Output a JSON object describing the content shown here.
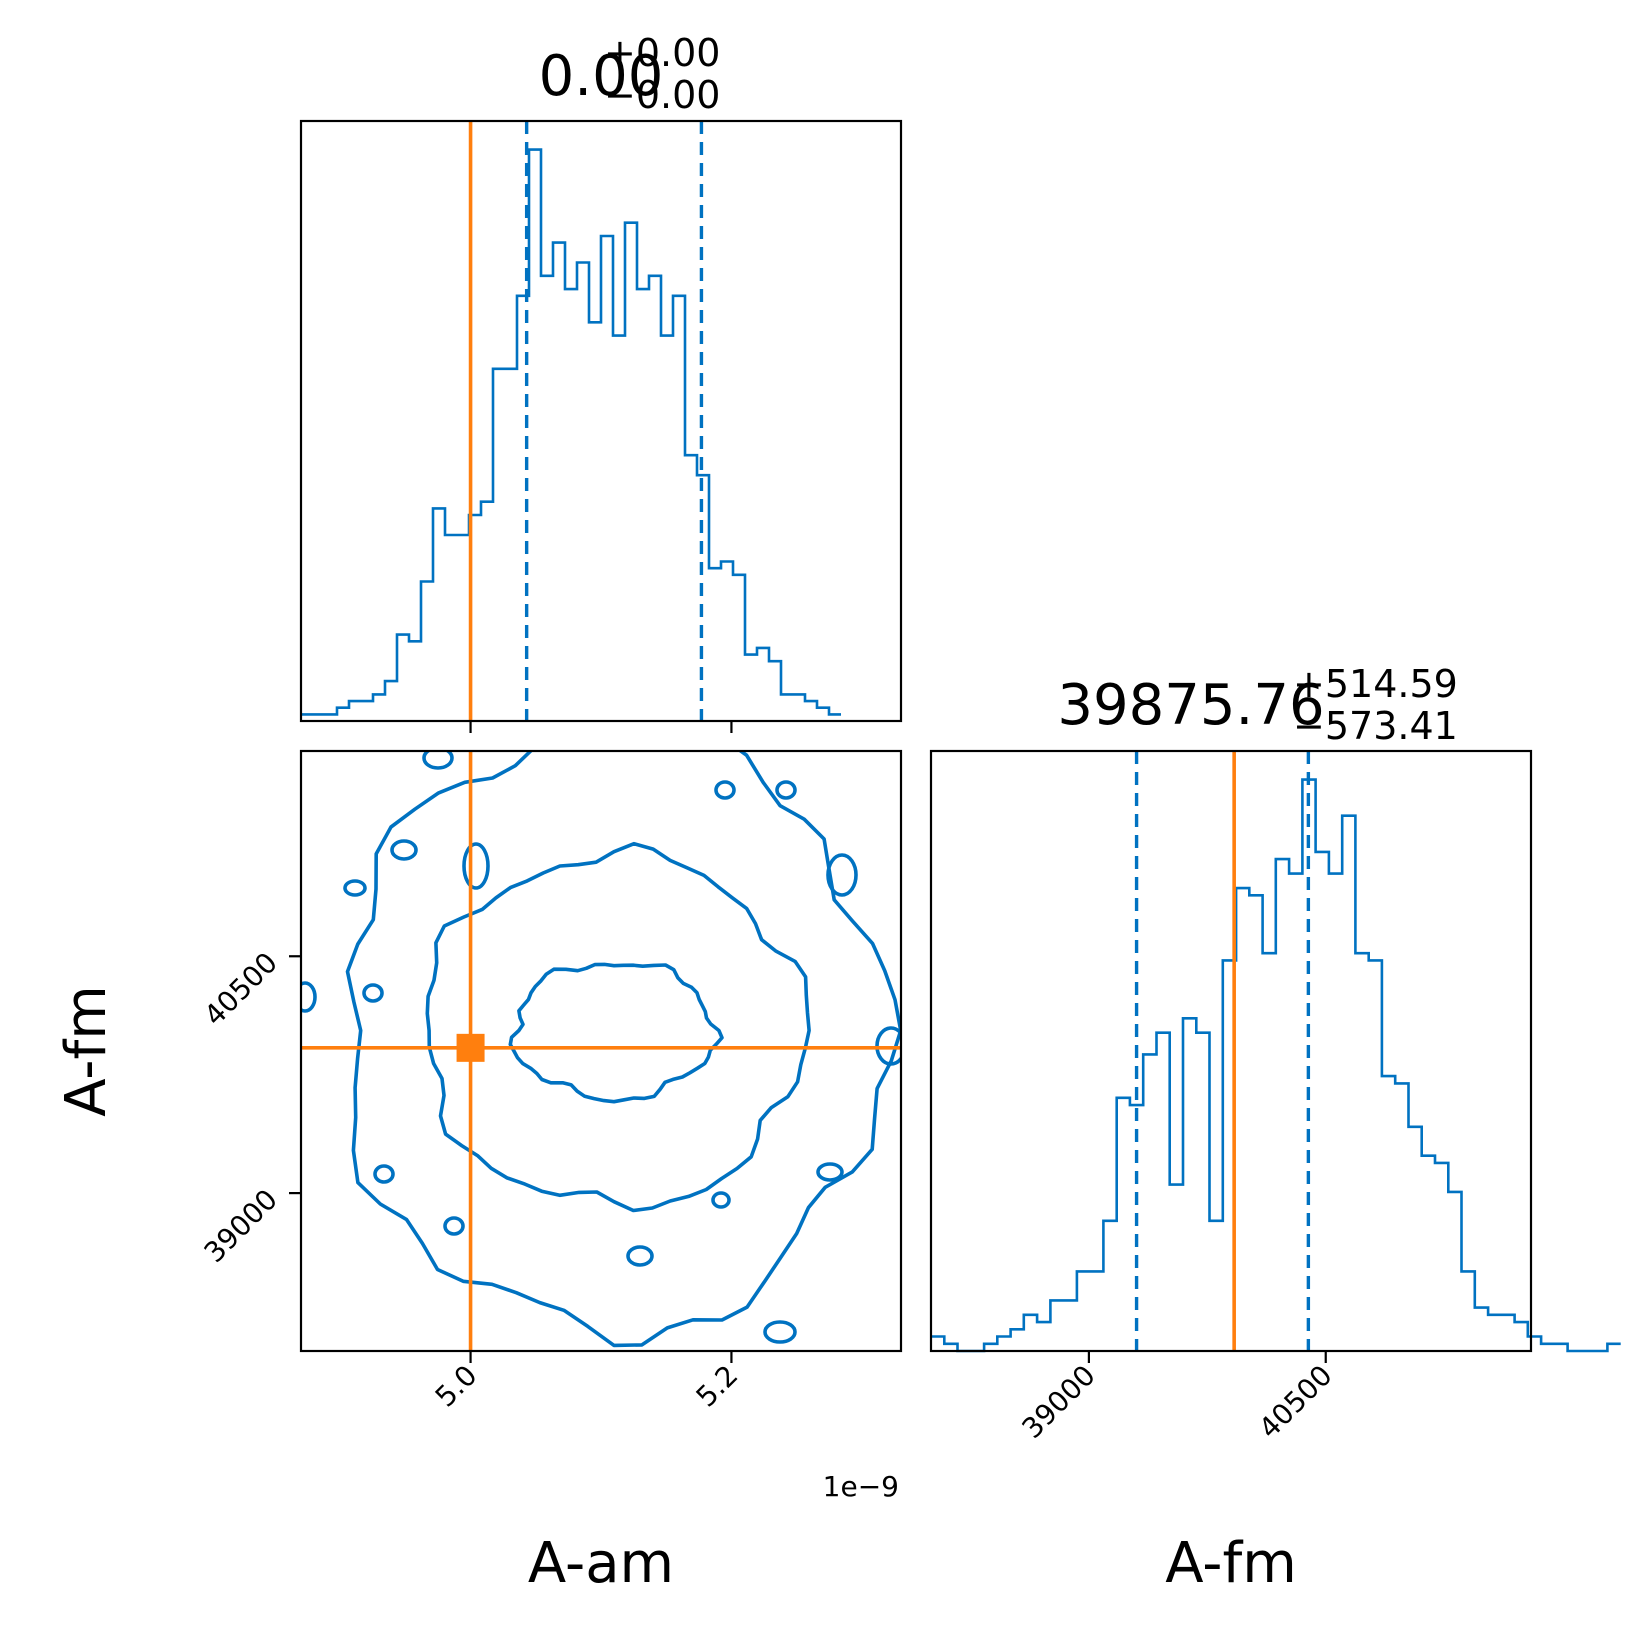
{
  "chart_data": {
    "type": "corner",
    "colors": {
      "posterior": "#0072c1",
      "truth": "#ff7f0e"
    },
    "parameters": [
      {
        "name": "A-am",
        "range": [
          4.87e-09,
          5.33e-09
        ],
        "ticks": [
          5e-09,
          5.2e-09
        ],
        "tick_labels": [
          "5.0",
          "5.2"
        ],
        "offset_label": "1e−9",
        "truth": 5e-09,
        "quantiles": [
          5.043e-09,
          5.177e-09
        ]
      },
      {
        "name": "A-fm",
        "range": [
          38000,
          41800
        ],
        "ticks": [
          39000,
          40500
        ],
        "tick_labels": [
          "39000",
          "40500"
        ],
        "truth": 39920,
        "quantiles": [
          39302,
          40390
        ]
      }
    ],
    "titles": [
      {
        "value": "0.00",
        "plus": "+0.00",
        "minus": "−0.00"
      },
      {
        "value": "39875.76",
        "plus": "+514.59",
        "minus": "−573.41"
      }
    ],
    "hist_a_am": {
      "bin_edges_start": 4.87e-09,
      "bin_width": 9.2e-12,
      "counts": [
        1,
        1,
        1,
        2,
        3,
        3,
        4,
        6,
        13,
        12,
        21,
        32,
        28,
        28,
        31,
        33,
        53,
        53,
        64,
        86,
        67,
        72,
        65,
        69,
        60,
        73,
        58,
        75,
        65,
        67,
        58,
        64,
        40,
        37,
        23,
        24,
        22,
        10,
        11,
        9,
        4,
        4,
        3,
        2,
        1
      ]
    },
    "hist_a_fm": {
      "bin_edges_start": 38000,
      "bin_width": 84,
      "counts": [
        2,
        1,
        0,
        0,
        1,
        2,
        3,
        5,
        4,
        7,
        7,
        11,
        11,
        18,
        35,
        34,
        41,
        44,
        23,
        46,
        44,
        18,
        54,
        64,
        63,
        55,
        68,
        66,
        79,
        69,
        66,
        74,
        55,
        54,
        38,
        37,
        31,
        27,
        26,
        22,
        11,
        6,
        5,
        5,
        4,
        2,
        1,
        1,
        0,
        0,
        0,
        1
      ]
    },
    "xlabel": "A-am",
    "xlabel2": "A-fm",
    "ylabel": "A-fm"
  }
}
